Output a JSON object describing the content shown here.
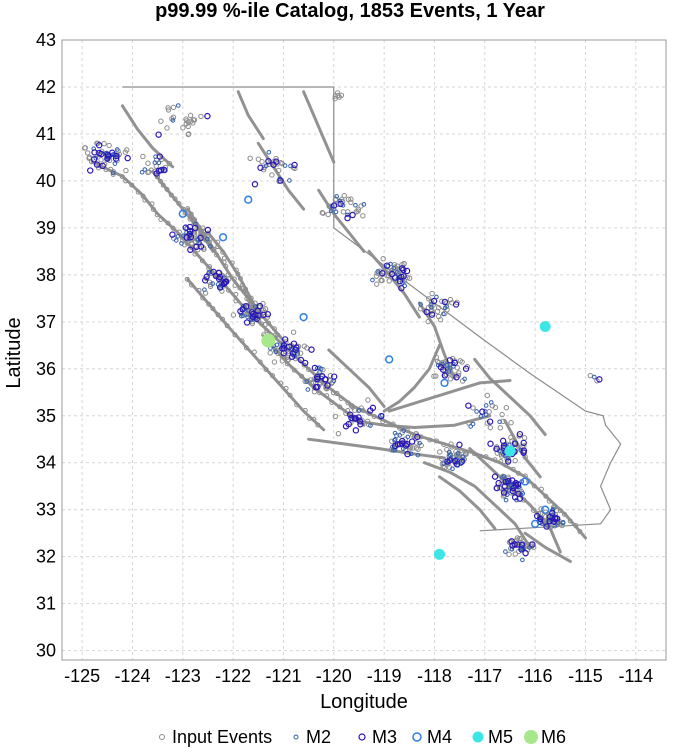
{
  "chart_data": {
    "type": "scatter",
    "title": "p99.99 %-ile Catalog, 1853 Events, 1 Year",
    "xlabel": "Longitude",
    "ylabel": "Latitude",
    "xlim": [
      -125.4,
      -113.4
    ],
    "ylim": [
      29.8,
      43.0
    ],
    "x_ticks": [
      -125,
      -124,
      -123,
      -122,
      -121,
      -120,
      -119,
      -118,
      -117,
      -116,
      -115,
      -114
    ],
    "y_ticks": [
      30,
      31,
      32,
      33,
      34,
      35,
      36,
      37,
      38,
      39,
      40,
      41,
      42,
      43
    ],
    "x_tick_labels": [
      "-125",
      "-124",
      "-123",
      "-122",
      "-121",
      "-120",
      "-119",
      "-118",
      "-117",
      "-116",
      "-115",
      "-114"
    ],
    "y_tick_labels": [
      "30",
      "31",
      "32",
      "33",
      "34",
      "35",
      "36",
      "37",
      "38",
      "39",
      "40",
      "41",
      "42",
      "43"
    ],
    "grid": true,
    "legend_position": "bottom",
    "colors": {
      "input": "#8c8c8c",
      "m2": "#3060b0",
      "m3": "#2a16b8",
      "m4": "#2f7fe8",
      "m5": "#3de6e6",
      "m6": "#a6e88a",
      "fault": "#8c8c8c",
      "grid": "#d6d6d6"
    },
    "legend": [
      {
        "label": "Input Events",
        "key": "input"
      },
      {
        "label": "M2",
        "key": "m2"
      },
      {
        "label": "M3",
        "key": "m3"
      },
      {
        "label": "M4",
        "key": "m4"
      },
      {
        "label": "M5",
        "key": "m5"
      },
      {
        "label": "M6",
        "key": "m6"
      }
    ],
    "faults": [
      [
        [
          -124.8,
          40.4
        ],
        [
          -124.2,
          40.1
        ],
        [
          -123.8,
          39.7
        ],
        [
          -123.5,
          39.3
        ],
        [
          -123.1,
          38.9
        ],
        [
          -122.6,
          38.3
        ],
        [
          -122.1,
          37.7
        ],
        [
          -121.7,
          37.2
        ],
        [
          -121.2,
          36.7
        ],
        [
          -120.6,
          36.1
        ],
        [
          -120.1,
          35.6
        ],
        [
          -119.6,
          35.2
        ],
        [
          -119.0,
          34.9
        ],
        [
          -118.4,
          34.6
        ],
        [
          -117.8,
          34.4
        ],
        [
          -117.2,
          34.2
        ],
        [
          -116.7,
          34.0
        ],
        [
          -116.2,
          33.7
        ],
        [
          -115.8,
          33.3
        ],
        [
          -115.4,
          32.9
        ],
        [
          -115.0,
          32.4
        ]
      ],
      [
        [
          -122.9,
          39.4
        ],
        [
          -122.6,
          38.9
        ],
        [
          -122.3,
          38.4
        ],
        [
          -122.0,
          37.9
        ],
        [
          -121.7,
          37.5
        ],
        [
          -121.4,
          37.1
        ],
        [
          -121.0,
          36.6
        ]
      ],
      [
        [
          -122.5,
          38.9
        ],
        [
          -122.2,
          38.5
        ],
        [
          -121.9,
          38.0
        ],
        [
          -121.7,
          37.6
        ],
        [
          -121.5,
          37.2
        ]
      ],
      [
        [
          -123.6,
          40.2
        ],
        [
          -123.3,
          39.8
        ],
        [
          -123.0,
          39.4
        ],
        [
          -122.7,
          39.0
        ],
        [
          -122.4,
          38.5
        ]
      ],
      [
        [
          -122.9,
          37.9
        ],
        [
          -122.5,
          37.4
        ],
        [
          -122.1,
          36.9
        ],
        [
          -121.6,
          36.3
        ],
        [
          -121.1,
          35.7
        ],
        [
          -120.6,
          35.1
        ],
        [
          -120.2,
          34.7
        ]
      ],
      [
        [
          -121.4,
          36.7
        ],
        [
          -120.9,
          36.1
        ],
        [
          -120.4,
          35.6
        ],
        [
          -119.9,
          35.2
        ],
        [
          -119.4,
          34.8
        ]
      ],
      [
        [
          -120.5,
          34.5
        ],
        [
          -119.8,
          34.4
        ],
        [
          -119.1,
          34.3
        ],
        [
          -118.5,
          34.2
        ],
        [
          -117.8,
          34.1
        ]
      ],
      [
        [
          -119.6,
          34.9
        ],
        [
          -119.0,
          34.8
        ],
        [
          -118.4,
          34.75
        ],
        [
          -117.6,
          34.8
        ],
        [
          -116.9,
          35.0
        ]
      ],
      [
        [
          -118.9,
          35.1
        ],
        [
          -118.3,
          35.3
        ],
        [
          -117.7,
          35.5
        ],
        [
          -117.1,
          35.7
        ],
        [
          -116.5,
          35.75
        ]
      ],
      [
        [
          -118.2,
          34.0
        ],
        [
          -117.7,
          33.8
        ],
        [
          -117.2,
          33.5
        ],
        [
          -116.8,
          33.1
        ],
        [
          -116.4,
          32.7
        ],
        [
          -116.1,
          32.2
        ]
      ],
      [
        [
          -117.3,
          34.3
        ],
        [
          -116.9,
          33.9
        ],
        [
          -116.5,
          33.5
        ],
        [
          -116.1,
          33.1
        ],
        [
          -115.7,
          32.6
        ],
        [
          -115.5,
          32.1
        ]
      ],
      [
        [
          -116.6,
          34.9
        ],
        [
          -116.4,
          34.5
        ],
        [
          -116.2,
          34.1
        ],
        [
          -115.9,
          33.7
        ]
      ],
      [
        [
          -117.2,
          36.2
        ],
        [
          -116.9,
          35.8
        ],
        [
          -116.5,
          35.4
        ],
        [
          -116.1,
          35.0
        ],
        [
          -115.8,
          34.6
        ]
      ],
      [
        [
          -118.3,
          37.4
        ],
        [
          -118.0,
          36.9
        ],
        [
          -117.8,
          36.3
        ],
        [
          -117.6,
          35.8
        ]
      ],
      [
        [
          -119.3,
          38.5
        ],
        [
          -118.9,
          38.0
        ],
        [
          -118.6,
          37.6
        ],
        [
          -118.3,
          37.1
        ]
      ],
      [
        [
          -120.3,
          39.8
        ],
        [
          -120.0,
          39.3
        ],
        [
          -119.7,
          38.9
        ],
        [
          -119.4,
          38.5
        ]
      ],
      [
        [
          -121.5,
          40.8
        ],
        [
          -121.2,
          40.3
        ],
        [
          -120.9,
          39.8
        ],
        [
          -120.6,
          39.4
        ]
      ],
      [
        [
          -121.9,
          41.9
        ],
        [
          -121.7,
          41.4
        ],
        [
          -121.4,
          40.9
        ]
      ],
      [
        [
          -120.6,
          41.9
        ],
        [
          -120.4,
          41.4
        ],
        [
          -120.2,
          40.9
        ],
        [
          -120.0,
          40.4
        ]
      ],
      [
        [
          -124.2,
          41.6
        ],
        [
          -123.9,
          41.1
        ],
        [
          -123.6,
          40.7
        ],
        [
          -123.2,
          40.3
        ]
      ],
      [
        [
          -119.0,
          35.1
        ],
        [
          -118.7,
          35.3
        ],
        [
          -118.4,
          35.6
        ],
        [
          -118.1,
          36.0
        ],
        [
          -117.9,
          36.5
        ]
      ],
      [
        [
          -120.1,
          36.4
        ],
        [
          -119.7,
          36.0
        ],
        [
          -119.3,
          35.6
        ],
        [
          -119.0,
          35.2
        ]
      ],
      [
        [
          -117.9,
          33.7
        ],
        [
          -117.5,
          33.4
        ],
        [
          -117.1,
          33.0
        ],
        [
          -116.8,
          32.6
        ]
      ],
      [
        [
          -116.2,
          32.5
        ],
        [
          -115.8,
          32.2
        ],
        [
          -115.3,
          31.9
        ]
      ]
    ],
    "california_border": [
      [
        -124.2,
        42.0
      ],
      [
        -120.0,
        42.0
      ],
      [
        -120.0,
        39.0
      ],
      [
        -117.0,
        36.6
      ],
      [
        -116.1,
        35.9
      ],
      [
        -115.0,
        35.1
      ],
      [
        -114.65,
        35.0
      ],
      [
        -114.6,
        34.8
      ],
      [
        -114.3,
        34.4
      ],
      [
        -114.5,
        34.0
      ],
      [
        -114.7,
        33.5
      ],
      [
        -114.5,
        33.0
      ],
      [
        -114.7,
        32.7
      ],
      [
        -117.1,
        32.55
      ]
    ],
    "events_M5": [
      {
        "lon": -115.8,
        "lat": 36.9
      },
      {
        "lon": -116.5,
        "lat": 34.25
      },
      {
        "lon": -117.9,
        "lat": 32.05
      }
    ],
    "events_M6": [
      {
        "lon": -121.3,
        "lat": 36.6
      }
    ],
    "events_M4": [
      {
        "lon": -121.7,
        "lat": 39.6
      },
      {
        "lon": -123.0,
        "lat": 39.3
      },
      {
        "lon": -120.6,
        "lat": 37.1
      },
      {
        "lon": -116.2,
        "lat": 33.6
      },
      {
        "lon": -118.9,
        "lat": 36.2
      },
      {
        "lon": -116.0,
        "lat": 32.7
      },
      {
        "lon": -122.2,
        "lat": 38.8
      },
      {
        "lon": -117.8,
        "lat": 35.7
      },
      {
        "lon": -115.8,
        "lat": 33.0
      }
    ],
    "event_clusters": [
      {
        "lon": -124.5,
        "lat": 40.5,
        "n": 55,
        "spread": 0.45
      },
      {
        "lon": -123.5,
        "lat": 40.3,
        "n": 25,
        "spread": 0.35
      },
      {
        "lon": -122.8,
        "lat": 38.8,
        "n": 60,
        "spread": 0.35
      },
      {
        "lon": -122.3,
        "lat": 37.9,
        "n": 40,
        "spread": 0.35
      },
      {
        "lon": -121.6,
        "lat": 37.2,
        "n": 55,
        "spread": 0.35
      },
      {
        "lon": -120.9,
        "lat": 36.4,
        "n": 50,
        "spread": 0.45
      },
      {
        "lon": -120.3,
        "lat": 35.8,
        "n": 40,
        "spread": 0.4
      },
      {
        "lon": -118.9,
        "lat": 38.0,
        "n": 55,
        "spread": 0.45
      },
      {
        "lon": -118.0,
        "lat": 37.3,
        "n": 35,
        "spread": 0.45
      },
      {
        "lon": -117.7,
        "lat": 36.0,
        "n": 45,
        "spread": 0.4
      },
      {
        "lon": -118.6,
        "lat": 34.4,
        "n": 50,
        "spread": 0.35
      },
      {
        "lon": -117.6,
        "lat": 34.1,
        "n": 50,
        "spread": 0.35
      },
      {
        "lon": -116.5,
        "lat": 34.3,
        "n": 55,
        "spread": 0.35
      },
      {
        "lon": -116.5,
        "lat": 33.5,
        "n": 65,
        "spread": 0.35
      },
      {
        "lon": -115.7,
        "lat": 32.8,
        "n": 60,
        "spread": 0.3
      },
      {
        "lon": -116.3,
        "lat": 32.2,
        "n": 40,
        "spread": 0.3
      },
      {
        "lon": -119.8,
        "lat": 39.5,
        "n": 35,
        "spread": 0.5
      },
      {
        "lon": -121.3,
        "lat": 40.3,
        "n": 30,
        "spread": 0.5
      },
      {
        "lon": -123.0,
        "lat": 41.3,
        "n": 25,
        "spread": 0.5
      },
      {
        "lon": -119.5,
        "lat": 35.0,
        "n": 30,
        "spread": 0.5
      },
      {
        "lon": -117.0,
        "lat": 35.0,
        "n": 25,
        "spread": 0.55
      },
      {
        "lon": -119.9,
        "lat": 41.8,
        "n": 6,
        "spread": 0.1
      },
      {
        "lon": -114.8,
        "lat": 35.8,
        "n": 4,
        "spread": 0.2
      }
    ]
  }
}
